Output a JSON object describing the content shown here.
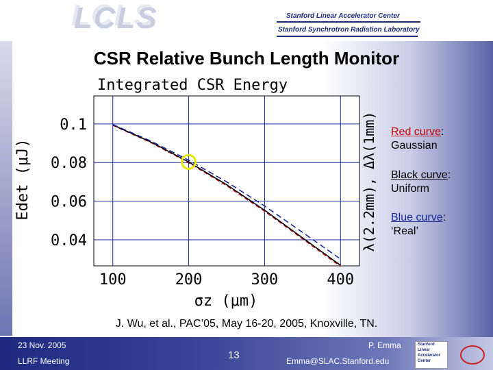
{
  "header": {
    "logo": "LCLS",
    "lab_line1": "Stanford Linear Accelerator Center",
    "lab_line2": "Stanford Synchrotron Radiation Laboratory"
  },
  "slide": {
    "title": "CSR Relative Bunch Length Monitor",
    "citation": "J. Wu, et al., PAC’05, May 16-20, 2005, Knoxville, TN."
  },
  "legend": {
    "red": {
      "name": "Red curve",
      "rest": ":",
      "desc": "Gaussian",
      "color": "#cc0000"
    },
    "black": {
      "name": "Black curve",
      "rest": ":",
      "desc": "Uniform",
      "color": "#000000"
    },
    "blue": {
      "name": "Blue curve",
      "rest": ":",
      "desc": "‘Real’",
      "color": "#1a2a9a"
    }
  },
  "chart_data": {
    "type": "line",
    "title": "Integrated CSR Energy",
    "xlabel": "σz (μm)",
    "ylabel": "Edet (μJ)",
    "right_label": "λ(2.2mm), Δλ(1mm)",
    "xlim": [
      75,
      425
    ],
    "ylim": [
      0.0265,
      0.1145
    ],
    "x_ticks": [
      100,
      200,
      300,
      400
    ],
    "x_tick_labels": [
      "100",
      "200",
      "300",
      "400"
    ],
    "y_ticks": [
      0.04,
      0.06,
      0.08,
      0.1
    ],
    "y_tick_labels": [
      "0.04",
      "0.06",
      "0.08",
      "0.1"
    ],
    "grid": true,
    "series": [
      {
        "name": "Gaussian",
        "color": "#cc0000",
        "dash": "6,4",
        "x": [
          100,
          150,
          200,
          250,
          300,
          350,
          400
        ],
        "y": [
          0.0993,
          0.0904,
          0.0799,
          0.068,
          0.0548,
          0.0405,
          0.0262
        ]
      },
      {
        "name": "Uniform",
        "color": "#000000",
        "dash": "",
        "x": [
          100,
          150,
          200,
          250,
          300,
          350,
          400
        ],
        "y": [
          0.0995,
          0.0907,
          0.0803,
          0.0685,
          0.0553,
          0.041,
          0.0268
        ]
      },
      {
        "name": "Real",
        "color": "#1a2a9a",
        "dash": "8,5",
        "x": [
          100,
          150,
          200,
          250,
          300,
          350,
          400
        ],
        "y": [
          0.0997,
          0.0912,
          0.0812,
          0.07,
          0.0575,
          0.0438,
          0.03
        ]
      }
    ],
    "highlight": {
      "x": 200,
      "y": 0.0803,
      "color": "#e8e800"
    }
  },
  "footer": {
    "date": "23 Nov. 2005",
    "event": "LLRF Meeting",
    "page": "13",
    "author": "P. Emma",
    "email": "Emma@SLAC.Stanford.edu",
    "logo_lines": [
      "Stanford",
      "Linear",
      "Accelerator",
      "Center"
    ]
  }
}
